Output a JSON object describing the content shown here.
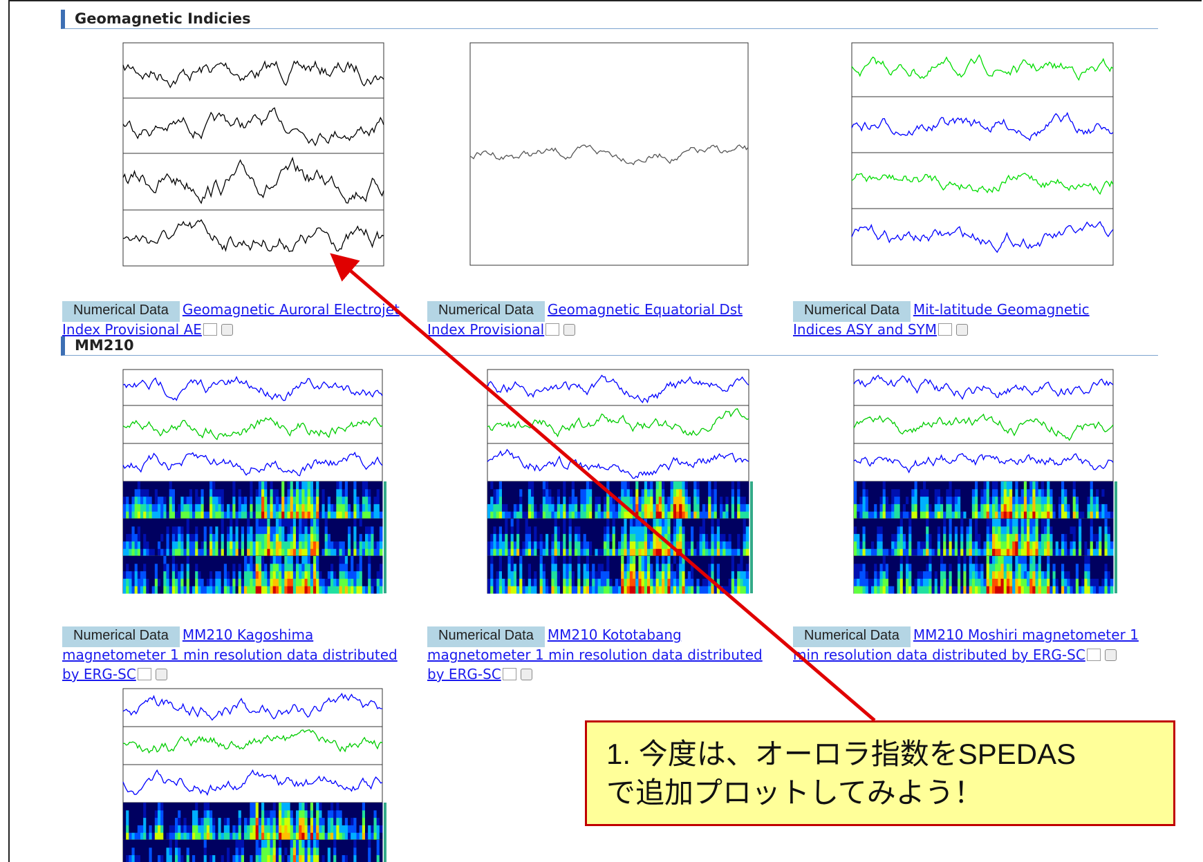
{
  "sections": [
    {
      "title": "Geomagnetic Indicies",
      "items": [
        {
          "badge": "Numerical Data",
          "link": "Geomagnetic Auroral Electrojet Index Provisional AE"
        },
        {
          "badge": "Numerical Data",
          "link": "Geomagnetic Equatorial Dst Index Provisional"
        },
        {
          "badge": "Numerical Data",
          "link": "Mit-latitude Geomagnetic Indices ASY and SYM"
        }
      ]
    },
    {
      "title": "MM210",
      "items": [
        {
          "badge": "Numerical Data",
          "link": "MM210 Kagoshima magnetometer 1 min resolution data distributed by ERG-SC"
        },
        {
          "badge": "Numerical Data",
          "link": "MM210 Kototabang magnetometer 1 min resolution data distributed by ERG-SC"
        },
        {
          "badge": "Numerical Data",
          "link": "MM210 Moshiri magnetometer 1 min resolution data distributed by ERG-SC"
        }
      ]
    }
  ],
  "callout": {
    "lines": [
      "1. 今度は、オーロラ指数をSPEDAS",
      "で追加プロットしてみよう！"
    ]
  }
}
